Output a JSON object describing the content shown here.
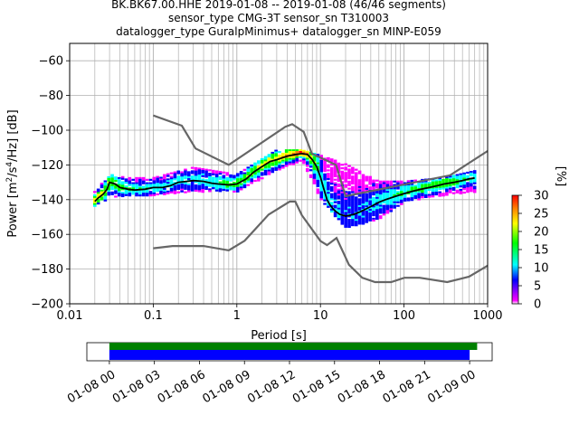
{
  "chart_data": {
    "type": "heatmap",
    "title_lines": [
      "BK.BK67.00.HHE   2019-01-08 -- 2019-01-08  (46/46 segments)",
      "sensor_type CMG-3T sensor_sn T310003",
      "datalogger_type GuralpMinimus+ datalogger_sn MINP-E059"
    ],
    "xlabel": "Period [s]",
    "ylabel": "Power [m²/s⁴/Hz] [dB]",
    "ylabel_parts": {
      "pre": "Power [m",
      "sup1": "2",
      "mid": "/s",
      "sup2": "4",
      "post": "/Hz] [dB]"
    },
    "x_scale": "log",
    "xlim": [
      0.01,
      1000
    ],
    "ylim": [
      -200,
      -50
    ],
    "x_ticks": [
      {
        "value": 0.01,
        "label": "0.01"
      },
      {
        "value": 0.1,
        "label": "0.1"
      },
      {
        "value": 1,
        "label": "1"
      },
      {
        "value": 10,
        "label": "10"
      },
      {
        "value": 100,
        "label": "100"
      },
      {
        "value": 1000,
        "label": "1000"
      }
    ],
    "y_ticks": [
      {
        "value": -60,
        "label": "−60"
      },
      {
        "value": -80,
        "label": "−80"
      },
      {
        "value": -100,
        "label": "−100"
      },
      {
        "value": -120,
        "label": "−120"
      },
      {
        "value": -140,
        "label": "−140"
      },
      {
        "value": -160,
        "label": "−160"
      },
      {
        "value": -180,
        "label": "−180"
      },
      {
        "value": -200,
        "label": "−200"
      }
    ],
    "grid": true,
    "colorbar": {
      "label": "[%]",
      "min": 0,
      "max": 30,
      "ticks": [
        {
          "value": 0,
          "label": "0"
        },
        {
          "value": 5,
          "label": "5"
        },
        {
          "value": 10,
          "label": "10"
        },
        {
          "value": 15,
          "label": "15"
        },
        {
          "value": 20,
          "label": "20"
        },
        {
          "value": 25,
          "label": "25"
        },
        {
          "value": 30,
          "label": "30"
        }
      ],
      "colors": [
        "#ffffff",
        "#ff00ff",
        "#0000ff",
        "#00ffff",
        "#00ff00",
        "#ffff00",
        "#ff8000",
        "#ff0000"
      ]
    },
    "nhnm": {
      "period": [
        0.1,
        0.22,
        0.32,
        0.8,
        3.8,
        4.6,
        6.3,
        7.9,
        15.4,
        20,
        354.8,
        1000
      ],
      "power": [
        -91.5,
        -97.4,
        -110.5,
        -120,
        -98,
        -96.5,
        -101,
        -113.5,
        -120,
        -138,
        -126,
        -112
      ]
    },
    "nlnm": {
      "period": [
        0.1,
        0.17,
        0.4,
        0.8,
        1.24,
        2.4,
        4.3,
        5,
        6,
        10,
        12,
        15.6,
        21.9,
        31.6,
        45,
        70,
        101,
        154,
        328,
        600,
        1000
      ],
      "power": [
        -168,
        -166.7,
        -166.7,
        -169.2,
        -163.7,
        -148.6,
        -141.1,
        -141.1,
        -149,
        -163.8,
        -166.2,
        -162.1,
        -177.5,
        -185,
        -187.5,
        -187.5,
        -185,
        -185,
        -187.5,
        -184.4,
        -178
      ]
    },
    "mode": {
      "period": [
        0.02,
        0.022,
        0.025,
        0.028,
        0.03,
        0.035,
        0.04,
        0.05,
        0.06,
        0.08,
        0.1,
        0.13,
        0.16,
        0.2,
        0.25,
        0.3,
        0.4,
        0.5,
        0.6,
        0.8,
        1,
        1.3,
        1.6,
        2,
        2.5,
        3,
        4,
        5,
        6,
        7,
        8,
        9,
        10,
        11,
        12,
        13,
        14,
        15,
        17,
        20,
        25,
        30,
        40,
        50,
        60,
        80,
        100,
        130,
        160,
        200,
        250,
        300,
        400,
        500,
        600,
        700
      ],
      "power": [
        -141,
        -139,
        -137,
        -134,
        -130,
        -131,
        -133,
        -134,
        -134.5,
        -134,
        -133,
        -133,
        -132,
        -130,
        -129.5,
        -129,
        -129.5,
        -130.5,
        -131,
        -131.5,
        -131,
        -128,
        -124,
        -121,
        -118,
        -117,
        -115,
        -114,
        -113.5,
        -114,
        -117,
        -121,
        -127,
        -134,
        -140,
        -143,
        -145,
        -146.5,
        -148.5,
        -149.5,
        -148.5,
        -147,
        -144,
        -141.5,
        -140,
        -138,
        -136.5,
        -135,
        -134,
        -133,
        -132,
        -131,
        -130,
        -129,
        -128,
        -127.5
      ]
    },
    "heatmap_cells": [
      {
        "period": 0.02,
        "power_min": -144,
        "power_max": -136,
        "mode_percent": 20
      },
      {
        "period": 0.03,
        "power_min": -140,
        "power_max": -126,
        "mode_percent": 15
      },
      {
        "period": 0.05,
        "power_min": -138,
        "power_max": -128,
        "mode_percent": 12
      },
      {
        "period": 0.1,
        "power_min": -138,
        "power_max": -128,
        "mode_percent": 10
      },
      {
        "period": 0.3,
        "power_min": -136,
        "power_max": -122,
        "mode_percent": 8
      },
      {
        "period": 1,
        "power_min": -136,
        "power_max": -126,
        "mode_percent": 14
      },
      {
        "period": 3,
        "power_min": -124,
        "power_max": -112,
        "mode_percent": 18
      },
      {
        "period": 6,
        "power_min": -118,
        "power_max": -112,
        "mode_percent": 25
      },
      {
        "period": 10,
        "power_min": -140,
        "power_max": -115,
        "mode_percent": 10
      },
      {
        "period": 20,
        "power_min": -157,
        "power_max": -120,
        "mode_percent": 6
      },
      {
        "period": 50,
        "power_min": -152,
        "power_max": -130,
        "mode_percent": 8
      },
      {
        "period": 100,
        "power_min": -142,
        "power_max": -130,
        "mode_percent": 12
      },
      {
        "period": 300,
        "power_min": -138,
        "power_max": -128,
        "mode_percent": 15
      },
      {
        "period": 700,
        "power_min": -136,
        "power_max": -124,
        "mode_percent": 10
      }
    ]
  },
  "timeline": {
    "ticks": [
      "01-08 00",
      "01-08 03",
      "01-08 06",
      "01-08 09",
      "01-08 12",
      "01-08 15",
      "01-08 18",
      "01-08 21",
      "01-09 00"
    ],
    "range_hours": [
      -1.5,
      25.5
    ],
    "green_bar_hours": [
      0,
      24.5
    ],
    "blue_bar_hours": [
      0,
      24
    ],
    "green_color": "#008000",
    "blue_color": "#0000ff"
  }
}
